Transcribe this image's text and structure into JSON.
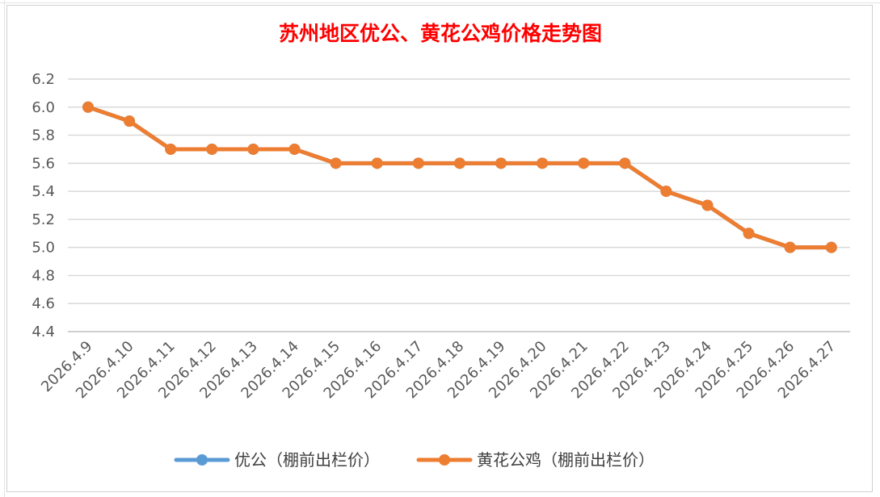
{
  "chart_data": {
    "type": "line",
    "title": "苏州地区优公、黄花公鸡价格走势图",
    "xlabel": "",
    "ylabel": "",
    "ylim": [
      4.4,
      6.2
    ],
    "yticks": [
      "6.2",
      "6.0",
      "5.8",
      "5.6",
      "5.4",
      "5.2",
      "5.0",
      "4.8",
      "4.6",
      "4.4"
    ],
    "grid": true,
    "legend_position": "bottom",
    "categories": [
      "2026.4.9",
      "2026.4.10",
      "2026.4.11",
      "2026.4.12",
      "2026.4.13",
      "2026.4.14",
      "2026.4.15",
      "2026.4.16",
      "2026.4.17",
      "2026.4.18",
      "2026.4.19",
      "2026.4.20",
      "2026.4.21",
      "2026.4.22",
      "2026.4.23",
      "2026.4.24",
      "2026.4.25",
      "2026.4.26",
      "2026.4.27"
    ],
    "series": [
      {
        "name": "优公（棚前出栏价）",
        "color": "#5b9bd5",
        "values": [
          6.0,
          5.9,
          5.7,
          5.7,
          5.7,
          5.7,
          5.6,
          5.6,
          5.6,
          5.6,
          5.6,
          5.6,
          5.6,
          5.6,
          5.4,
          5.3,
          5.1,
          5.0,
          5.0
        ]
      },
      {
        "name": "黄花公鸡（棚前出栏价）",
        "color": "#ed7d31",
        "values": [
          6.0,
          5.9,
          5.7,
          5.7,
          5.7,
          5.7,
          5.6,
          5.6,
          5.6,
          5.6,
          5.6,
          5.6,
          5.6,
          5.6,
          5.4,
          5.3,
          5.1,
          5.0,
          5.0
        ]
      }
    ]
  }
}
